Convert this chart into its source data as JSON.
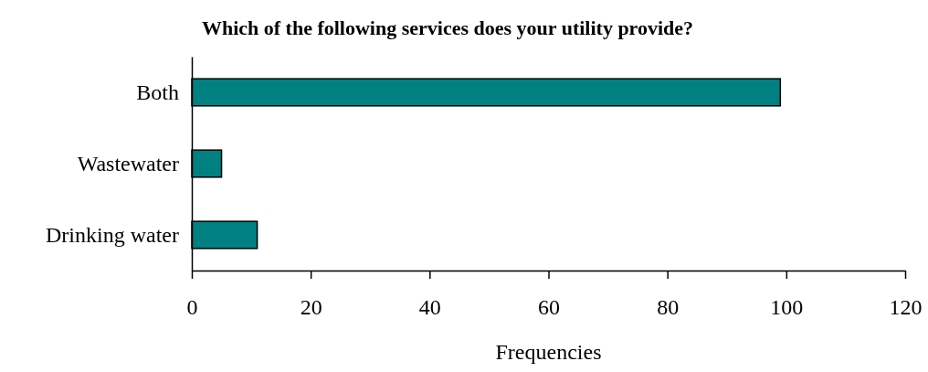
{
  "chart_data": {
    "type": "bar",
    "orientation": "horizontal",
    "title": "Which of the following services does your utility provide?",
    "xlabel": "Frequencies",
    "categories": [
      "Both",
      "Wastewater",
      "Drinking water"
    ],
    "values": [
      99,
      5,
      11
    ],
    "color": "#008080",
    "xlim": [
      0,
      120
    ],
    "xticks": [
      0,
      20,
      40,
      60,
      80,
      100,
      120
    ]
  }
}
